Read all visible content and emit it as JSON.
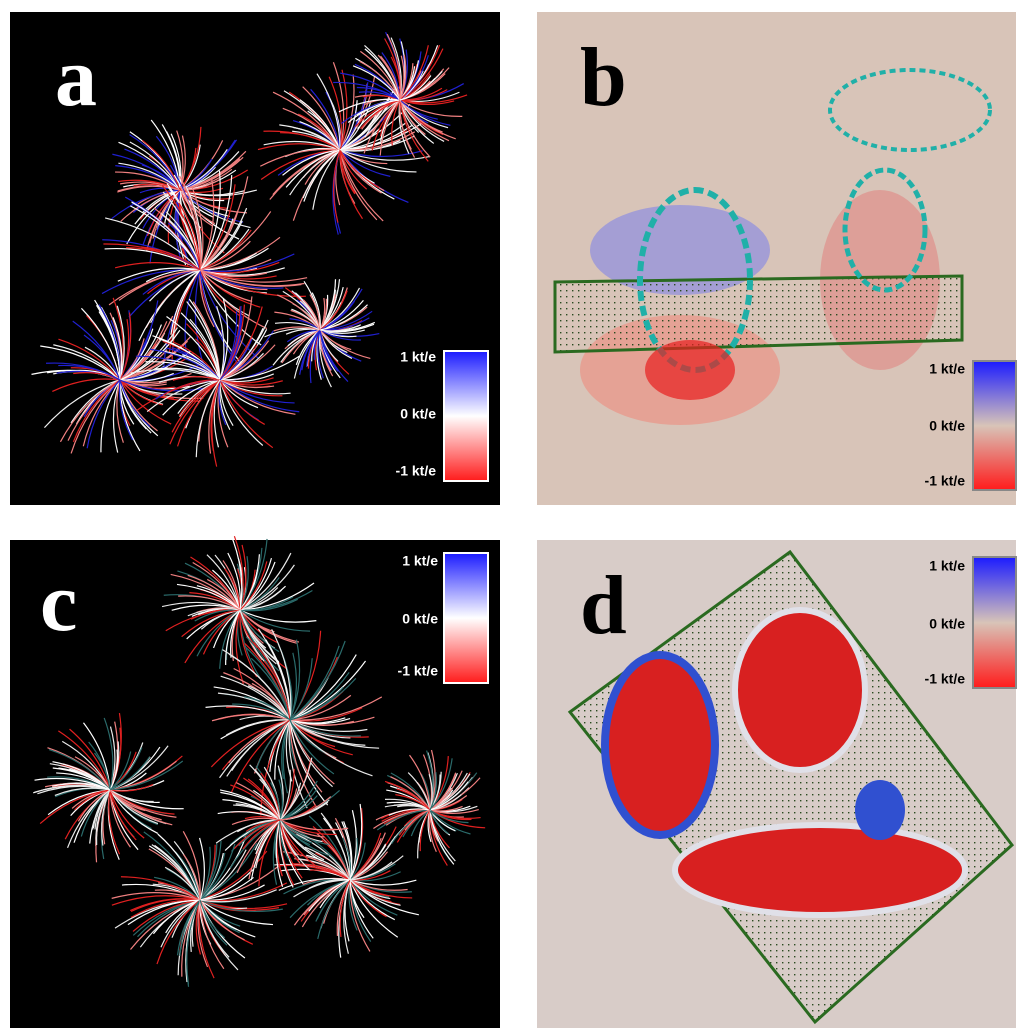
{
  "panels": [
    {
      "label": "a",
      "colorbar": {
        "max": "1 kt/e",
        "mid": "0 kt/e",
        "min": "-1 kt/e"
      }
    },
    {
      "label": "b",
      "colorbar": {
        "max": "1 kt/e",
        "mid": "0 kt/e",
        "min": "-1 kt/e"
      }
    },
    {
      "label": "c",
      "colorbar": {
        "max": "1 kt/e",
        "mid": "0 kt/e",
        "min": "-1 kt/e"
      }
    },
    {
      "label": "d",
      "colorbar": {
        "max": "1 kt/e",
        "mid": "0 kt/e",
        "min": "-1 kt/e"
      }
    }
  ]
}
